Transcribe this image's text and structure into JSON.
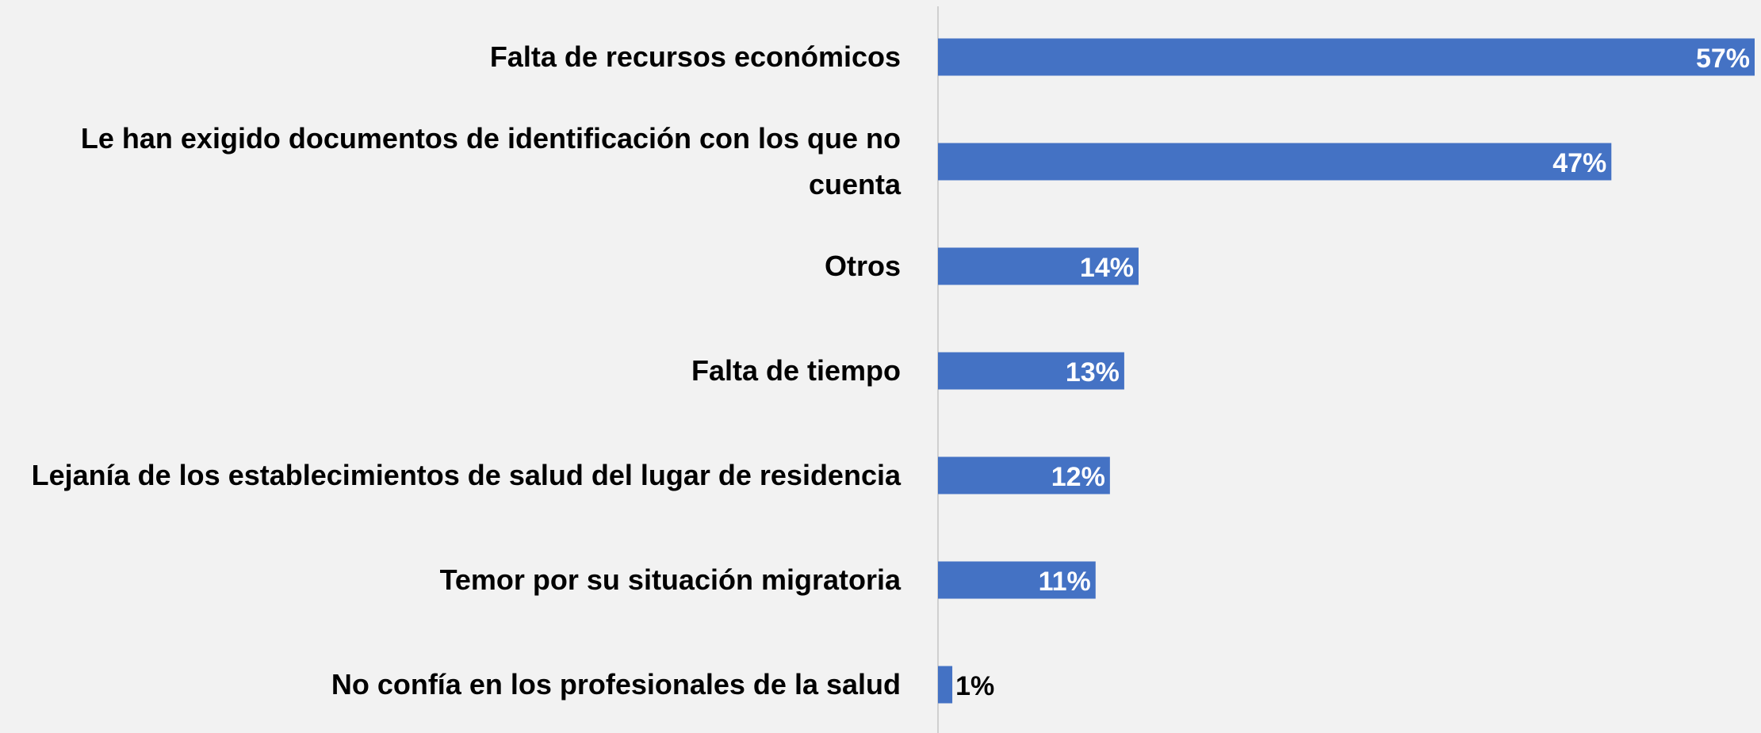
{
  "chart_data": {
    "type": "hbar",
    "categories": [
      "Falta de recursos económicos",
      "Le han exigido documentos de identificación con los que no cuenta",
      "Otros",
      "Falta de tiempo",
      "Lejanía de los establecimientos de salud del lugar de residencia",
      "Temor por su situación migratoria",
      "No confía en los profesionales de la salud"
    ],
    "values": [
      57,
      47,
      14,
      13,
      12,
      11,
      1
    ],
    "value_labels": [
      "57%",
      "47%",
      "14%",
      "13%",
      "12%",
      "11%",
      "1%"
    ],
    "color": "#4472c4",
    "xlim": [
      0,
      57
    ]
  }
}
